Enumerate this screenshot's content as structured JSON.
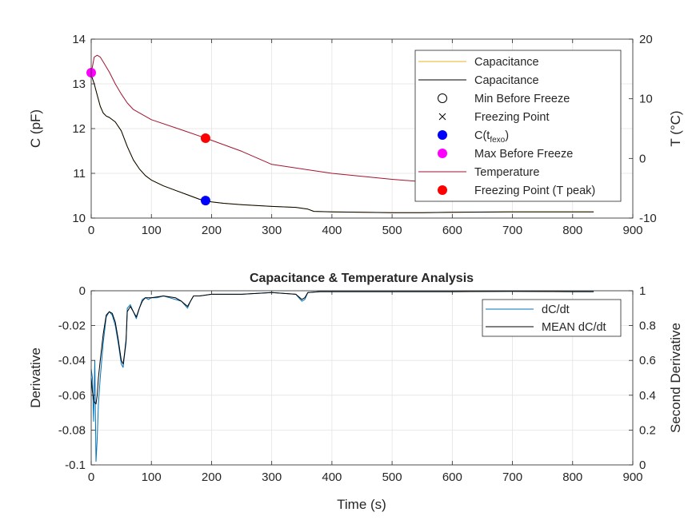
{
  "chart_data": [
    {
      "type": "line",
      "title": "",
      "xlabel": "",
      "ylabel": "C (pF)",
      "y2label": "T (°C)",
      "xlim": [
        0,
        900
      ],
      "ylim": [
        10,
        14
      ],
      "y2lim": [
        -10,
        20
      ],
      "xticks": [
        "0",
        "100",
        "200",
        "300",
        "400",
        "500",
        "600",
        "700",
        "800",
        "900"
      ],
      "yticks": [
        "10",
        "11",
        "12",
        "13",
        "14"
      ],
      "y2ticks": [
        "-10",
        "0",
        "10",
        "20"
      ],
      "grid": true,
      "legend_position": "top-right",
      "legend": [
        {
          "label": "Capacitance",
          "color": "#EDB120",
          "marker": "line"
        },
        {
          "label": "Capacitance",
          "color": "#000000",
          "marker": "line"
        },
        {
          "label": "Min Before Freeze",
          "color": "#000000",
          "marker": "circle-open"
        },
        {
          "label": "Freezing Point",
          "color": "#000000",
          "marker": "x"
        },
        {
          "label_main": "C(t",
          "label_sub": "fexo",
          "label_end": ")",
          "color": "#0000FF",
          "marker": "dot"
        },
        {
          "label": "Max Before Freeze",
          "color": "#FF00FF",
          "marker": "dot"
        },
        {
          "label": "Temperature",
          "color": "#A2142F",
          "marker": "line"
        },
        {
          "label": "Freezing Point (T peak)",
          "color": "#FF0000",
          "marker": "dot"
        }
      ],
      "series": [
        {
          "name": "Capacitance",
          "axis": "left",
          "color": "#EDB120",
          "x": [
            0,
            5,
            10,
            15,
            20,
            25,
            30,
            40,
            50,
            60,
            70,
            80,
            90,
            100,
            120,
            140,
            160,
            180,
            190,
            200,
            220,
            250,
            300,
            340,
            360,
            370,
            400,
            450,
            500,
            550,
            600,
            700,
            800,
            835
          ],
          "y": [
            13.2,
            13.0,
            12.75,
            12.5,
            12.35,
            12.28,
            12.25,
            12.15,
            11.95,
            11.6,
            11.3,
            11.1,
            10.95,
            10.85,
            10.72,
            10.62,
            10.52,
            10.42,
            10.39,
            10.36,
            10.33,
            10.3,
            10.26,
            10.24,
            10.2,
            10.15,
            10.14,
            10.13,
            10.12,
            10.12,
            10.13,
            10.14,
            10.14,
            10.14
          ]
        },
        {
          "name": "Capacitance",
          "axis": "left",
          "color": "#000000",
          "x": [
            0,
            5,
            10,
            15,
            20,
            25,
            30,
            40,
            50,
            60,
            70,
            80,
            90,
            100,
            120,
            140,
            160,
            180,
            190,
            200,
            220,
            250,
            300,
            340,
            360,
            370,
            400,
            450,
            500,
            550,
            600,
            700,
            800,
            835
          ],
          "y": [
            13.2,
            13.0,
            12.75,
            12.5,
            12.35,
            12.28,
            12.25,
            12.15,
            11.95,
            11.6,
            11.3,
            11.1,
            10.95,
            10.85,
            10.72,
            10.62,
            10.52,
            10.42,
            10.39,
            10.36,
            10.33,
            10.3,
            10.26,
            10.24,
            10.2,
            10.15,
            10.14,
            10.13,
            10.12,
            10.12,
            10.13,
            10.14,
            10.14,
            10.14
          ]
        },
        {
          "name": "Temperature",
          "axis": "right",
          "color": "#A2142F",
          "x": [
            0,
            5,
            10,
            15,
            20,
            30,
            40,
            50,
            60,
            70,
            100,
            150,
            190,
            250,
            300,
            400,
            500,
            600,
            700,
            800,
            835
          ],
          "y": [
            14.3,
            17.0,
            17.3,
            17.0,
            16.2,
            14.5,
            12.5,
            10.8,
            9.3,
            8.2,
            6.5,
            4.8,
            3.4,
            1.2,
            -1.0,
            -2.5,
            -3.5,
            -4.3,
            -4.8,
            -5.5,
            -5.7
          ]
        }
      ],
      "markers": [
        {
          "name": "C(tfexo)",
          "x": 190,
          "y": 10.39,
          "axis": "left",
          "color": "#0000FF"
        },
        {
          "name": "Max Before Freeze",
          "x": 0,
          "y": 13.25,
          "axis": "left",
          "color": "#FF00FF"
        },
        {
          "name": "Freezing Point (T peak)",
          "x": 190,
          "y": 3.4,
          "axis": "right",
          "color": "#FF0000"
        }
      ]
    },
    {
      "type": "line",
      "title": "Capacitance & Temperature Analysis",
      "xlabel": "Time (s)",
      "ylabel": "Derivative",
      "y2label": "Second Derivative",
      "xlim": [
        0,
        900
      ],
      "ylim": [
        -0.1,
        0.0
      ],
      "y2lim": [
        0,
        1
      ],
      "xticks": [
        "0",
        "100",
        "200",
        "300",
        "400",
        "500",
        "600",
        "700",
        "800",
        "900"
      ],
      "yticks": [
        "-0.1",
        "-0.08",
        "-0.06",
        "-0.04",
        "-0.02",
        "0"
      ],
      "y2ticks": [
        "0",
        "0.2",
        "0.4",
        "0.6",
        "0.8",
        "1"
      ],
      "grid": true,
      "legend_position": "top-right",
      "legend": [
        {
          "label": "dC/dt",
          "color": "#0072BD",
          "marker": "line"
        },
        {
          "label": "MEAN dC/dt",
          "color": "#000000",
          "marker": "line"
        }
      ],
      "series": [
        {
          "name": "dC/dt",
          "color": "#0072BD",
          "x": [
            0,
            2,
            4,
            6,
            8,
            10,
            12,
            15,
            20,
            25,
            30,
            35,
            40,
            45,
            50,
            53,
            55,
            58,
            60,
            65,
            70,
            75,
            80,
            85,
            90,
            95,
            100,
            110,
            120,
            130,
            140,
            150,
            155,
            160,
            165,
            170,
            180,
            200,
            250,
            300,
            340,
            350,
            355,
            360,
            380,
            400,
            500,
            600,
            700,
            800,
            835
          ],
          "y": [
            -0.045,
            -0.05,
            -0.075,
            -0.04,
            -0.098,
            -0.085,
            -0.065,
            -0.05,
            -0.03,
            -0.015,
            -0.012,
            -0.014,
            -0.02,
            -0.03,
            -0.042,
            -0.044,
            -0.038,
            -0.03,
            -0.01,
            -0.008,
            -0.012,
            -0.016,
            -0.01,
            -0.005,
            -0.004,
            -0.005,
            -0.004,
            -0.004,
            -0.003,
            -0.004,
            -0.005,
            -0.006,
            -0.008,
            -0.01,
            -0.006,
            -0.003,
            -0.003,
            -0.002,
            -0.002,
            -0.001,
            -0.002,
            -0.006,
            -0.005,
            -0.001,
            -0.0005,
            -0.0005,
            -0.0005,
            -0.0005,
            -0.0003,
            -0.0005,
            -0.0005
          ]
        },
        {
          "name": "MEAN dC/dt",
          "color": "#000000",
          "x": [
            0,
            2,
            5,
            8,
            10,
            12,
            15,
            20,
            25,
            30,
            35,
            40,
            45,
            50,
            53,
            55,
            58,
            60,
            65,
            70,
            75,
            80,
            85,
            90,
            95,
            100,
            120,
            140,
            150,
            160,
            165,
            170,
            180,
            200,
            250,
            300,
            340,
            350,
            355,
            360,
            380,
            400,
            500,
            600,
            700,
            800,
            835
          ],
          "y": [
            -0.05,
            -0.058,
            -0.064,
            -0.065,
            -0.06,
            -0.05,
            -0.04,
            -0.025,
            -0.014,
            -0.012,
            -0.013,
            -0.018,
            -0.028,
            -0.04,
            -0.042,
            -0.037,
            -0.028,
            -0.012,
            -0.009,
            -0.012,
            -0.015,
            -0.01,
            -0.006,
            -0.004,
            -0.004,
            -0.004,
            -0.003,
            -0.004,
            -0.006,
            -0.009,
            -0.006,
            -0.003,
            -0.003,
            -0.002,
            -0.002,
            -0.001,
            -0.002,
            -0.005,
            -0.004,
            -0.001,
            -0.0005,
            -0.0005,
            -0.0005,
            -0.0005,
            -0.0003,
            -0.0005,
            -0.0005
          ]
        }
      ]
    }
  ]
}
